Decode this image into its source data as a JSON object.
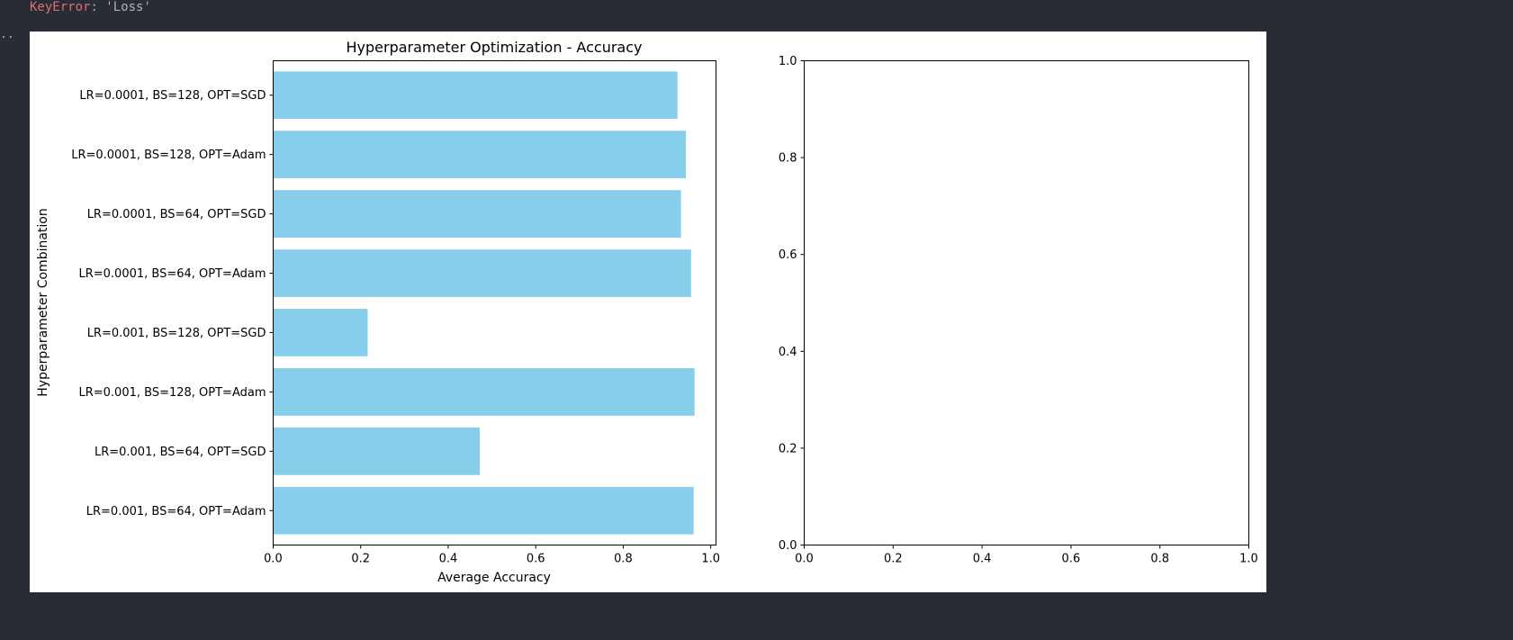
{
  "output": {
    "error_type": "KeyError",
    "error_message": ": 'Loss'",
    "ellipsis": ".."
  },
  "chart_data": [
    {
      "type": "bar",
      "orientation": "horizontal",
      "title": "Hyperparameter Optimization - Accuracy",
      "xlabel": "Average Accuracy",
      "ylabel": "Hyperparameter Combination",
      "categories": [
        "LR=0.0001, BS=128, OPT=SGD",
        "LR=0.0001, BS=128, OPT=Adam",
        "LR=0.0001, BS=64, OPT=SGD",
        "LR=0.0001, BS=64, OPT=Adam",
        "LR=0.001, BS=128, OPT=SGD",
        "LR=0.001, BS=128, OPT=Adam",
        "LR=0.001, BS=64, OPT=SGD",
        "LR=0.001, BS=64, OPT=Adam"
      ],
      "values": [
        0.924,
        0.943,
        0.932,
        0.955,
        0.216,
        0.963,
        0.472,
        0.961
      ],
      "xlim": [
        0.0,
        1.012
      ],
      "xticks": [
        "0.0",
        "0.2",
        "0.4",
        "0.6",
        "0.8",
        "1.0"
      ],
      "bar_color": "#87ceeb",
      "grid": false
    },
    {
      "type": "empty",
      "title": "",
      "xlim": [
        0.0,
        1.0
      ],
      "ylim": [
        0.0,
        1.0
      ],
      "xticks": [
        "0.0",
        "0.2",
        "0.4",
        "0.6",
        "0.8",
        "1.0"
      ],
      "yticks": [
        "0.0",
        "0.2",
        "0.4",
        "0.6",
        "0.8",
        "1.0"
      ],
      "grid": false
    }
  ]
}
